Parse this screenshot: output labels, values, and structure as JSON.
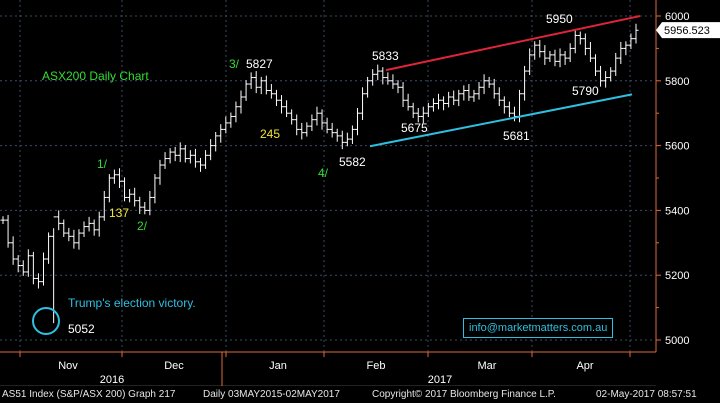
{
  "chart_data": {
    "type": "ohlc",
    "title": "ASX200 Daily Chart",
    "ylim": [
      4960,
      6040
    ],
    "y_ticks": [
      5000,
      5200,
      5400,
      5600,
      5800,
      6000
    ],
    "y_tick_labels": [
      "5000",
      "5200",
      "5400",
      "5600",
      "5800",
      "6000"
    ],
    "x_month_labels": [
      "Nov",
      "Dec",
      "Jan",
      "Feb",
      "Mar",
      "Apr"
    ],
    "x_year_labels": [
      "2016",
      "2017"
    ],
    "last_price_label": "5956.523",
    "grid": true,
    "closes": [
      5370,
      5300,
      5250,
      5230,
      5210,
      5260,
      5190,
      5180,
      5250,
      5320,
      5380,
      5360,
      5330,
      5320,
      5300,
      5330,
      5350,
      5360,
      5340,
      5380,
      5440,
      5500,
      5510,
      5490,
      5440,
      5450,
      5430,
      5410,
      5400,
      5440,
      5500,
      5540,
      5560,
      5580,
      5570,
      5590,
      5560,
      5570,
      5550,
      5540,
      5570,
      5600,
      5630,
      5650,
      5670,
      5690,
      5720,
      5750,
      5790,
      5810,
      5780,
      5800,
      5770,
      5760,
      5740,
      5720,
      5700,
      5680,
      5650,
      5640,
      5660,
      5680,
      5700,
      5670,
      5650,
      5640,
      5630,
      5610,
      5620,
      5650,
      5700,
      5760,
      5800,
      5820,
      5830,
      5810,
      5800,
      5790,
      5780,
      5740,
      5720,
      5700,
      5690,
      5700,
      5720,
      5730,
      5740,
      5730,
      5750,
      5740,
      5760,
      5770,
      5750,
      5760,
      5780,
      5800,
      5790,
      5760,
      5740,
      5720,
      5700,
      5690,
      5760,
      5830,
      5880,
      5910,
      5890,
      5870,
      5880,
      5860,
      5880,
      5870,
      5900,
      5940,
      5930,
      5900,
      5870,
      5830,
      5800,
      5810,
      5830,
      5870,
      5900,
      5910,
      5930,
      5956
    ],
    "annotations": [
      {
        "text": "5827",
        "value": 5827,
        "color": "#ffffff"
      },
      {
        "text": "3/",
        "value": 5827,
        "color": "#33dd33"
      },
      {
        "text": "5833",
        "value": 5833,
        "color": "#ffffff"
      },
      {
        "text": "5950",
        "value": 5950,
        "color": "#ffffff"
      },
      {
        "text": "5790",
        "value": 5790,
        "color": "#ffffff"
      },
      {
        "text": "5675",
        "value": 5675,
        "color": "#ffffff"
      },
      {
        "text": "5681",
        "value": 5681,
        "color": "#ffffff"
      },
      {
        "text": "245",
        "value": 245,
        "color": "#f2e33c"
      },
      {
        "text": "4/",
        "value": 5582,
        "color": "#33dd33"
      },
      {
        "text": "5582",
        "value": 5582,
        "color": "#ffffff"
      },
      {
        "text": "1/",
        "value": 5520,
        "color": "#33dd33"
      },
      {
        "text": "137",
        "value": 137,
        "color": "#f2e33c"
      },
      {
        "text": "2/",
        "value": 5400,
        "color": "#33dd33"
      },
      {
        "text": "Trump's election victory.",
        "value": 5052,
        "color": "#2fbfe0"
      },
      {
        "text": "5052",
        "value": 5052,
        "color": "#ffffff"
      }
    ],
    "trendlines": [
      {
        "name": "resistance",
        "color": "#e0243a",
        "from": 5833,
        "to": 6000
      },
      {
        "name": "support",
        "color": "#2fbfe0",
        "from": 5598,
        "to": 5758
      }
    ]
  },
  "email_label": "info@marketmatters.com.au",
  "footer": {
    "security": "AS51 Index (S&P/ASX 200) Graph 217",
    "range": "Daily 03MAY2015-02MAY2017",
    "copyright": "Copyright© 2017 Bloomberg Finance L.P.",
    "timestamp": "02-May-2017 08:57:51"
  },
  "colors": {
    "background": "#000000",
    "bars": "#ffffff",
    "grid": "#3a4a6a",
    "axis_line": "#e06a3a",
    "support": "#2fbfe0",
    "resistance": "#e0243a"
  }
}
